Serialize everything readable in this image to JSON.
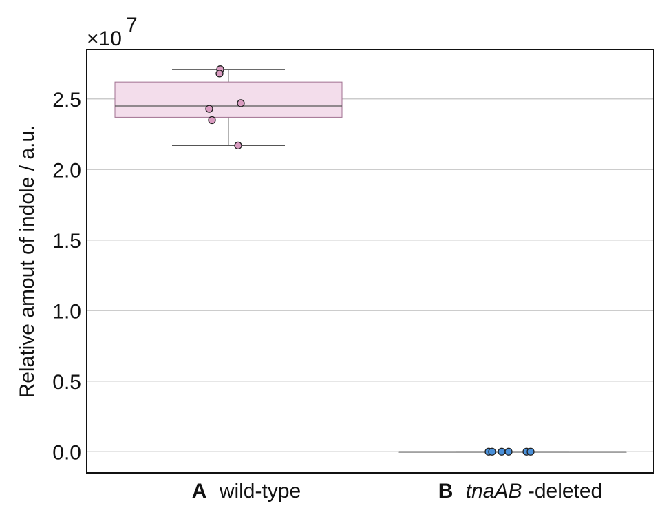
{
  "chart_data": {
    "type": "box",
    "ylabel": "Relative amout of indole / a.u.",
    "y_multiplier_label": "×10",
    "y_multiplier_exponent": "7",
    "ylim": [
      -0.15,
      2.85
    ],
    "yticks": [
      0.0,
      0.5,
      1.0,
      1.5,
      2.0,
      2.5
    ],
    "ytick_labels": [
      "0.0",
      "0.5",
      "1.0",
      "1.5",
      "2.0",
      "2.5"
    ],
    "grid": "horizontal",
    "categories": [
      {
        "letter": "A",
        "name": "wild-type",
        "box": {
          "min": 2.17,
          "q1": 2.37,
          "median": 2.45,
          "q3": 2.62,
          "max": 2.71
        },
        "points": [
          2.71,
          2.68,
          2.47,
          2.43,
          2.35,
          2.17
        ],
        "color": "#f3ddeb",
        "edge_color": "#a07090",
        "point_color": "#d99bc0"
      },
      {
        "letter": "B",
        "name_italic": "tnaAB",
        "name_rest": "-deleted",
        "box": {
          "min": 0.0,
          "q1": 0.0,
          "median": 0.0,
          "q3": 0.0,
          "max": 0.0
        },
        "points": [
          0.0,
          0.0,
          0.0,
          0.0,
          0.0,
          0.0
        ],
        "color": "#4a90d9",
        "edge_color": "#555555",
        "point_color": "#4a90d9"
      }
    ]
  }
}
